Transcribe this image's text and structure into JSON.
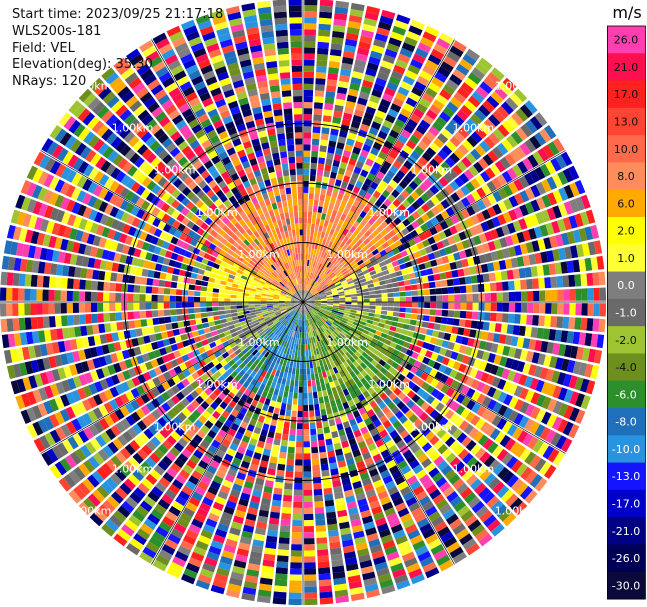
{
  "header": {
    "start_time": "Start time: 2023/09/25 21:17:18",
    "instrument": "WLS200s-181",
    "field": "Field: VEL",
    "elevation": "Elevation(deg): 35.30",
    "nrays": "NRays: 120"
  },
  "chart_data": {
    "type": "heatmap",
    "projection": "polar-ppi",
    "field": "VEL",
    "units": "m/s",
    "n_rays": 120,
    "elevation_deg": 35.3,
    "range_rings_km": [
      1.0,
      2.0,
      3.0
    ],
    "range_ring_label": "1.00km",
    "colorbar": {
      "label": "m/s",
      "ticks": [
        "26.0",
        "21.0",
        "17.0",
        "13.0",
        "10.0",
        "8.0",
        "6.0",
        "2.0",
        "1.0",
        "0.0",
        "-1.0",
        "-2.0",
        "-4.0",
        "-6.0",
        "-8.0",
        "-10.0",
        "-13.0",
        "-17.0",
        "-21.0",
        "-26.0",
        "-30.0"
      ],
      "colors": [
        "#ff3fb0",
        "#ff0f50",
        "#ff2020",
        "#ff4433",
        "#ff6a4a",
        "#ff8c5a",
        "#ffaa00",
        "#ffff00",
        "#ffff33",
        "#7e7e7e",
        "#6a6a6a",
        "#9ec531",
        "#6d8f1e",
        "#2c8f2c",
        "#1f6fba",
        "#2a93e0",
        "#1414ff",
        "#0000c8",
        "#000085",
        "#000055",
        "#0a0a3a"
      ]
    },
    "velocity_regions": [
      {
        "az_from": 300,
        "az_to": 360,
        "range_km": [
          0.2,
          2.0
        ],
        "values": [
          6.0,
          8.0,
          10.0
        ]
      },
      {
        "az_from": 0,
        "az_to": 60,
        "range_km": [
          0.2,
          2.0
        ],
        "values": [
          6.0,
          8.0,
          10.0
        ]
      },
      {
        "az_from": 60,
        "az_to": 100,
        "range_km": [
          0.2,
          1.6
        ],
        "values": [
          0.0,
          -1.0,
          1.0
        ]
      },
      {
        "az_from": 100,
        "az_to": 170,
        "range_km": [
          0.2,
          2.0
        ],
        "values": [
          -4.0,
          -6.0,
          -2.0
        ]
      },
      {
        "az_from": 170,
        "az_to": 230,
        "range_km": [
          0.2,
          1.7
        ],
        "values": [
          -6.0,
          -8.0,
          -10.0
        ]
      },
      {
        "az_from": 230,
        "az_to": 270,
        "range_km": [
          0.2,
          1.4
        ],
        "values": [
          -1.0,
          0.0,
          -2.0
        ]
      },
      {
        "az_from": 270,
        "az_to": 300,
        "range_km": [
          0.2,
          1.6
        ],
        "values": [
          2.0,
          1.0,
          6.0
        ]
      }
    ],
    "noise_beyond_km": 2.0
  }
}
